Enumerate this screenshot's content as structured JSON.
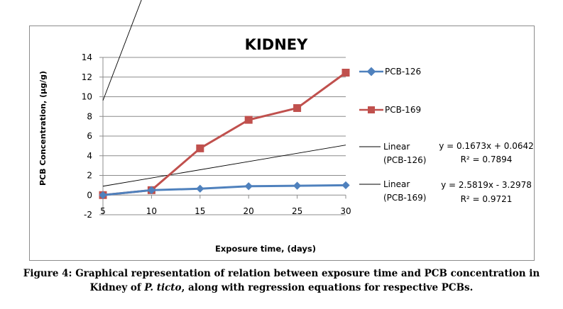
{
  "chart_data": {
    "type": "line",
    "title": "KIDNEY",
    "xlabel": "Exposure time, (days)",
    "ylabel": "PCB Concentration, (µg/g)",
    "x": [
      5,
      10,
      15,
      20,
      25,
      30
    ],
    "xlim": [
      5,
      30
    ],
    "ylim": [
      -2,
      14
    ],
    "x_ticks": [
      "5",
      "10",
      "15",
      "20",
      "25",
      "30"
    ],
    "y_ticks": [
      "-2",
      "0",
      "2",
      "4",
      "6",
      "8",
      "10",
      "12",
      "14"
    ],
    "grid": "horizontal",
    "legend_position": "right",
    "series": [
      {
        "name": "PCB-126",
        "values": [
          0.0,
          0.5,
          0.65,
          0.9,
          0.95,
          1.0
        ],
        "color": "#4f81bd",
        "marker": "diamond"
      },
      {
        "name": "PCB-169",
        "values": [
          0.0,
          0.5,
          4.75,
          7.65,
          8.85,
          12.45
        ],
        "color": "#c0504d",
        "marker": "square"
      }
    ],
    "trendlines": [
      {
        "legend": [
          "Linear",
          "(PCB-126)"
        ],
        "slope": 0.1673,
        "intercept": 0.0642,
        "equation": "y = 0.1673x + 0.0642",
        "r2": "R² = 0.7894"
      },
      {
        "legend": [
          "Linear",
          "(PCB-169)"
        ],
        "slope": 2.5819,
        "intercept": -3.2978,
        "equation": "y = 2.5819x - 3.2978",
        "r2": "R² = 0.9721"
      }
    ],
    "trendline_color": "#000000"
  },
  "caption": {
    "line1": "Figure 4: Graphical representation  of relation between exposure time and PCB concentration in",
    "line2_pre": "Kidney of ",
    "line2_italic": "P.  ticto",
    "line2_post": ", along with regression  equations for respective PCBs."
  }
}
